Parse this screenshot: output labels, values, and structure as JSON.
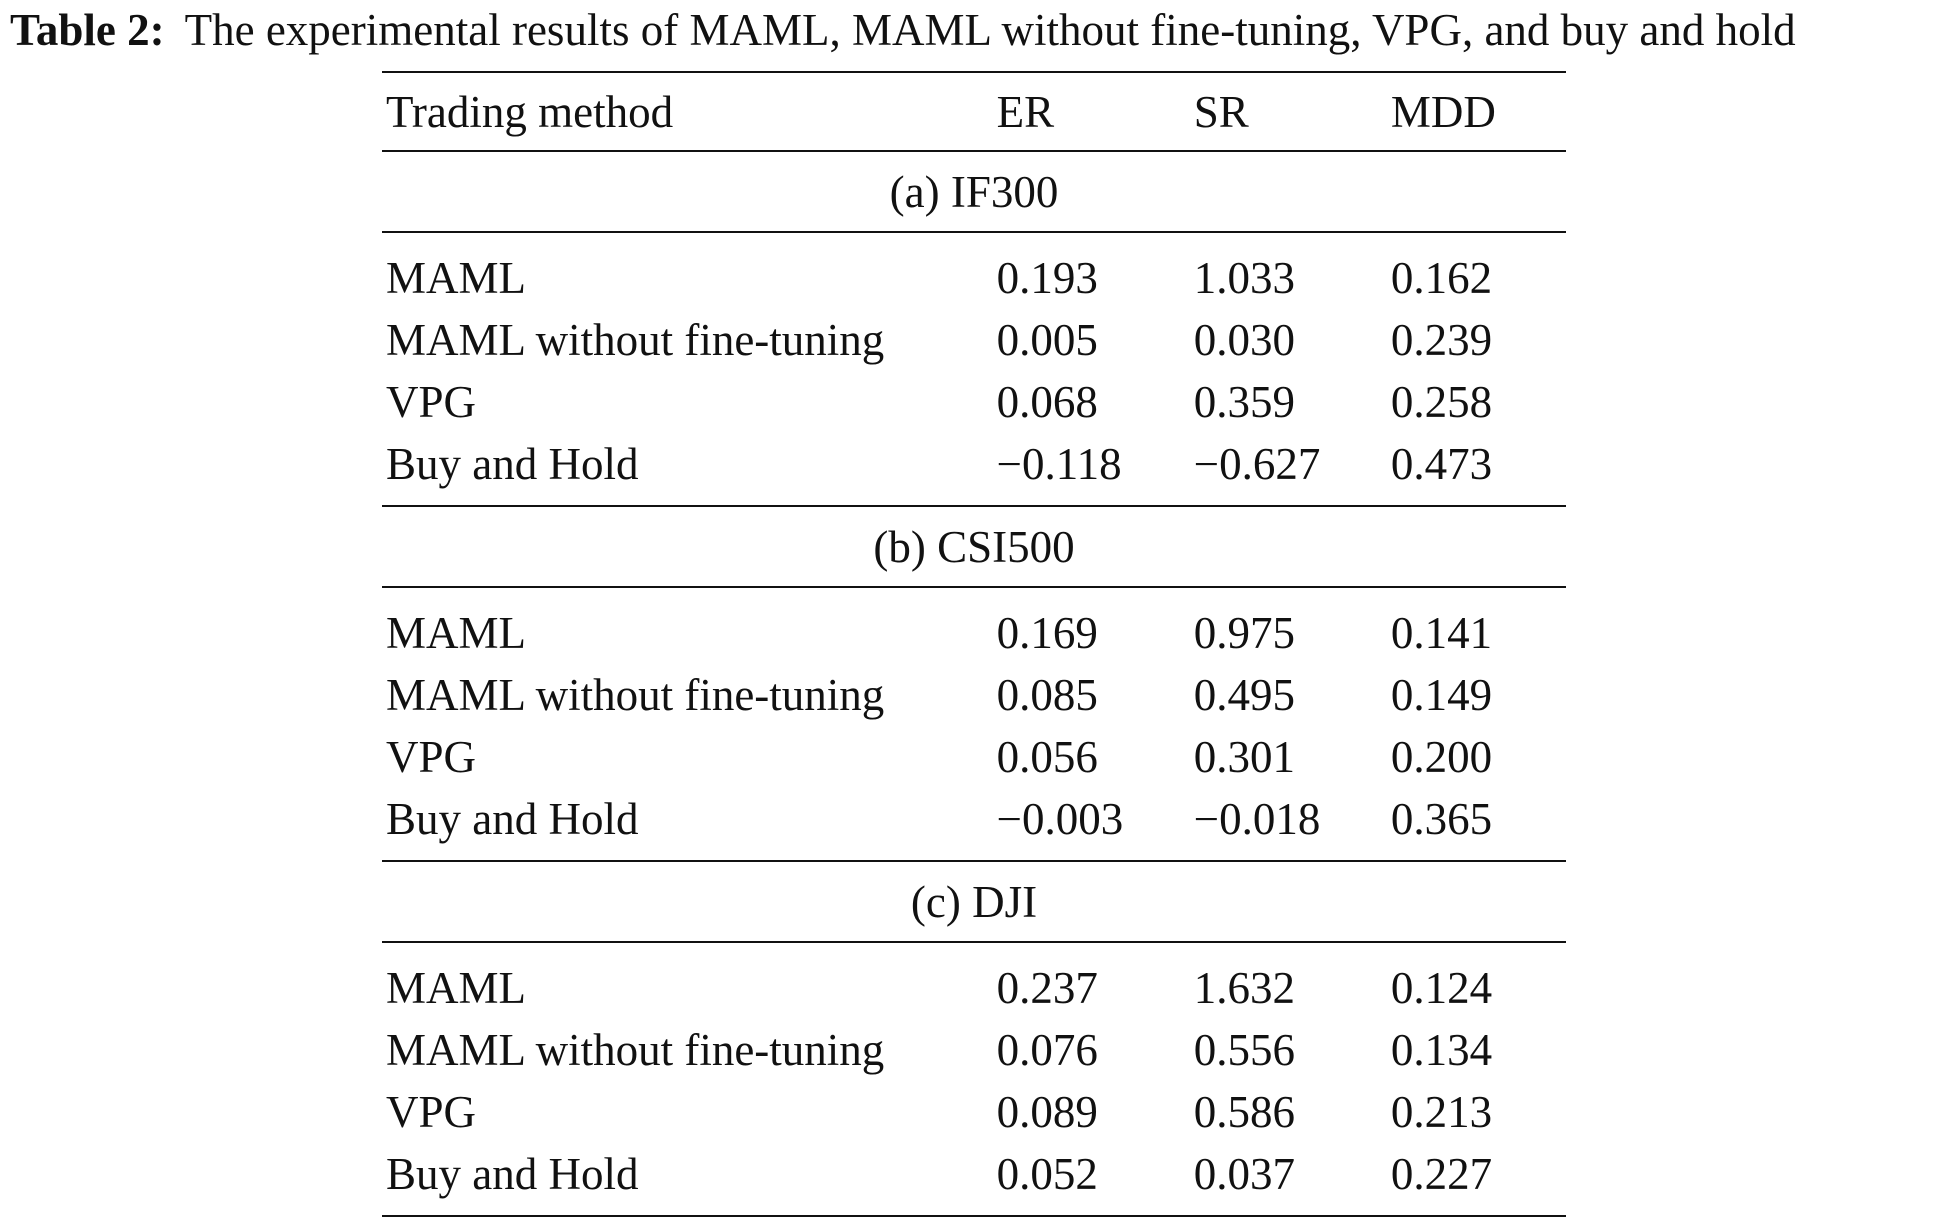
{
  "caption": {
    "label": "Table 2:",
    "text": "The experimental results of MAML, MAML without fine-tuning, VPG, and buy and hold"
  },
  "table": {
    "columns": [
      "Trading method",
      "ER",
      "SR",
      "MDD"
    ],
    "sections": [
      {
        "title": "(a) IF300",
        "rows": [
          {
            "method": "MAML",
            "er": "0.193",
            "sr": "1.033",
            "mdd": "0.162",
            "best": true
          },
          {
            "method": "MAML without fine-tuning",
            "er": "0.005",
            "sr": "0.030",
            "mdd": "0.239",
            "best": false
          },
          {
            "method": "VPG",
            "er": "0.068",
            "sr": "0.359",
            "mdd": "0.258",
            "best": false
          },
          {
            "method": "Buy and Hold",
            "er": "−0.118",
            "sr": "−0.627",
            "mdd": "0.473",
            "best": false
          }
        ]
      },
      {
        "title": "(b) CSI500",
        "rows": [
          {
            "method": "MAML",
            "er": "0.169",
            "sr": "0.975",
            "mdd": "0.141",
            "best": true
          },
          {
            "method": "MAML without fine-tuning",
            "er": "0.085",
            "sr": "0.495",
            "mdd": "0.149",
            "best": false
          },
          {
            "method": "VPG",
            "er": "0.056",
            "sr": "0.301",
            "mdd": "0.200",
            "best": false
          },
          {
            "method": "Buy and Hold",
            "er": "−0.003",
            "sr": "−0.018",
            "mdd": "0.365",
            "best": false
          }
        ]
      },
      {
        "title": "(c) DJI",
        "rows": [
          {
            "method": "MAML",
            "er": "0.237",
            "sr": "1.632",
            "mdd": "0.124",
            "best": true
          },
          {
            "method": "MAML without fine-tuning",
            "er": "0.076",
            "sr": "0.556",
            "mdd": "0.134",
            "best": false
          },
          {
            "method": "VPG",
            "er": "0.089",
            "sr": "0.586",
            "mdd": "0.213",
            "best": false
          },
          {
            "method": "Buy and Hold",
            "er": "0.052",
            "sr": "0.037",
            "mdd": "0.227",
            "best": false
          }
        ]
      }
    ]
  }
}
